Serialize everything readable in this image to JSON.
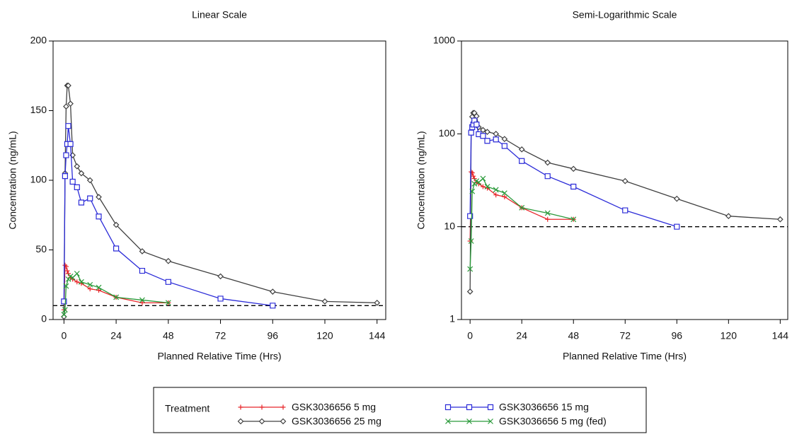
{
  "chart_data": [
    {
      "type": "line",
      "title": "Linear Scale",
      "xlabel": "Planned Relative Time (Hrs)",
      "ylabel": "Concentration (ng/mL)",
      "xlim": [
        -5,
        148
      ],
      "xticks": [
        0,
        24,
        48,
        72,
        96,
        120,
        144
      ],
      "ylim": [
        0,
        200
      ],
      "yticks": [
        0,
        50,
        100,
        150,
        200
      ],
      "log_scale": false,
      "reference_line": 10,
      "series": [
        {
          "name": "GSK3036656 5 mg",
          "color": "#e8262a",
          "marker": "plus",
          "x": [
            0,
            0.5,
            1,
            1.5,
            2,
            3,
            4,
            6,
            8,
            12,
            16,
            24,
            36,
            48
          ],
          "values": [
            7,
            39,
            38,
            35,
            33,
            30,
            29,
            27,
            26,
            22,
            21,
            16,
            12,
            12
          ]
        },
        {
          "name": "GSK3036656 25 mg",
          "color": "#404040",
          "marker": "diamond",
          "x": [
            0,
            0.5,
            1,
            1.5,
            2,
            3,
            4,
            6,
            8,
            12,
            16,
            24,
            36,
            48,
            72,
            96,
            120,
            144
          ],
          "values": [
            2,
            105,
            153,
            168,
            168,
            155,
            118,
            110,
            105,
            100,
            88,
            68,
            49,
            42,
            31,
            20,
            13,
            12
          ]
        },
        {
          "name": "GSK3036656 15 mg",
          "color": "#2b2bd8",
          "marker": "square",
          "x": [
            0,
            0.5,
            1,
            1.5,
            2,
            3,
            4,
            6,
            8,
            12,
            16,
            24,
            36,
            48,
            72,
            96
          ],
          "values": [
            13,
            103,
            118,
            126,
            139,
            126,
            99,
            95,
            84,
            87,
            74,
            51,
            35,
            27,
            15,
            10
          ]
        },
        {
          "name": "GSK3036656 5 mg (fed)",
          "color": "#2a9a3a",
          "marker": "cross",
          "x": [
            0,
            0.5,
            1,
            2,
            3,
            4,
            6,
            8,
            12,
            16,
            24,
            36,
            48
          ],
          "values": [
            3.5,
            7,
            24,
            29,
            31,
            30,
            33,
            27,
            25,
            23,
            16,
            14,
            12
          ]
        }
      ]
    },
    {
      "type": "line",
      "title": "Semi-Logarithmic Scale",
      "xlabel": "Planned Relative Time (Hrs)",
      "ylabel": "Concentration (ng/mL)",
      "xlim": [
        -4,
        147.5
      ],
      "xticks": [
        0,
        24,
        48,
        72,
        96,
        120,
        144
      ],
      "ylim": [
        1,
        1000
      ],
      "yticks": [
        1,
        10,
        100,
        1000
      ],
      "log_scale": true,
      "reference_line": 10,
      "series": [
        {
          "color": "#e8262a",
          "marker": "plus",
          "x": [
            0,
            0.5,
            1,
            1.5,
            2,
            3,
            4,
            6,
            8,
            12,
            16,
            24,
            36,
            48
          ],
          "values": [
            7,
            39,
            38,
            35,
            33,
            30,
            29,
            27,
            26,
            22,
            21,
            16,
            12,
            12
          ]
        },
        {
          "color": "#404040",
          "marker": "diamond",
          "x": [
            0,
            0.5,
            1,
            1.5,
            2,
            3,
            4,
            6,
            8,
            12,
            16,
            24,
            36,
            48,
            72,
            96,
            120,
            144
          ],
          "values": [
            2,
            105,
            153,
            168,
            168,
            155,
            118,
            110,
            105,
            100,
            88,
            68,
            49,
            42,
            31,
            20,
            13,
            12
          ]
        },
        {
          "color": "#2b2bd8",
          "marker": "square",
          "x": [
            0,
            0.5,
            1,
            1.5,
            2,
            3,
            4,
            6,
            8,
            12,
            16,
            24,
            36,
            48,
            72,
            96
          ],
          "values": [
            13,
            103,
            118,
            126,
            139,
            126,
            99,
            95,
            84,
            87,
            74,
            51,
            35,
            27,
            15,
            10
          ]
        },
        {
          "color": "#2a9a3a",
          "marker": "cross",
          "x": [
            0,
            0.5,
            1,
            2,
            3,
            4,
            6,
            8,
            12,
            16,
            24,
            36,
            48
          ],
          "values": [
            3.5,
            7,
            24,
            29,
            31,
            30,
            33,
            27,
            25,
            23,
            16,
            14,
            12
          ]
        }
      ]
    }
  ],
  "legend": {
    "title": "Treatment"
  }
}
